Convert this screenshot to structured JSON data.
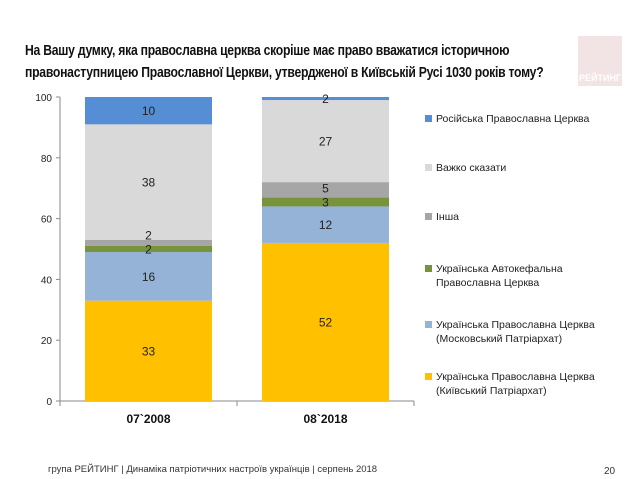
{
  "title": "На Вашу думку, яка православна церква скоріше має право вважатися історичною правонаступницею Православної Церкви, утвердженої в Київській Русі 1030 років тому?",
  "logo_text": "РЕЙТИНГ",
  "footer": "група РЕЙТИНГ  | Динаміка патріотичних настроїв українців |  серпень 2018",
  "page_number": "20",
  "chart_data": {
    "type": "bar",
    "stacked": true,
    "categories": [
      "07`2008",
      "08`2018"
    ],
    "ylim": [
      0,
      100
    ],
    "yticks": [
      "0",
      "20",
      "40",
      "60",
      "80",
      "100"
    ],
    "legend_position": "right",
    "series": [
      {
        "name": "Українська Православна Церква (Київський Патріархат)",
        "color": "#FFC000",
        "values": [
          33,
          52
        ]
      },
      {
        "name": "Українська Православна Церква (Московський Патріархат)",
        "color": "#95B3D7",
        "values": [
          16,
          12
        ]
      },
      {
        "name": "Українська Автокефальна Православна Церква",
        "color": "#77933C",
        "values": [
          2,
          3
        ]
      },
      {
        "name": "Інша",
        "color": "#A6A6A6",
        "values": [
          2,
          5
        ]
      },
      {
        "name": "Важко сказати",
        "color": "#D9D9D9",
        "values": [
          38,
          27
        ]
      },
      {
        "name": "Російська Православна Церква",
        "color": "#558ED5",
        "values": [
          10,
          2
        ]
      }
    ]
  }
}
